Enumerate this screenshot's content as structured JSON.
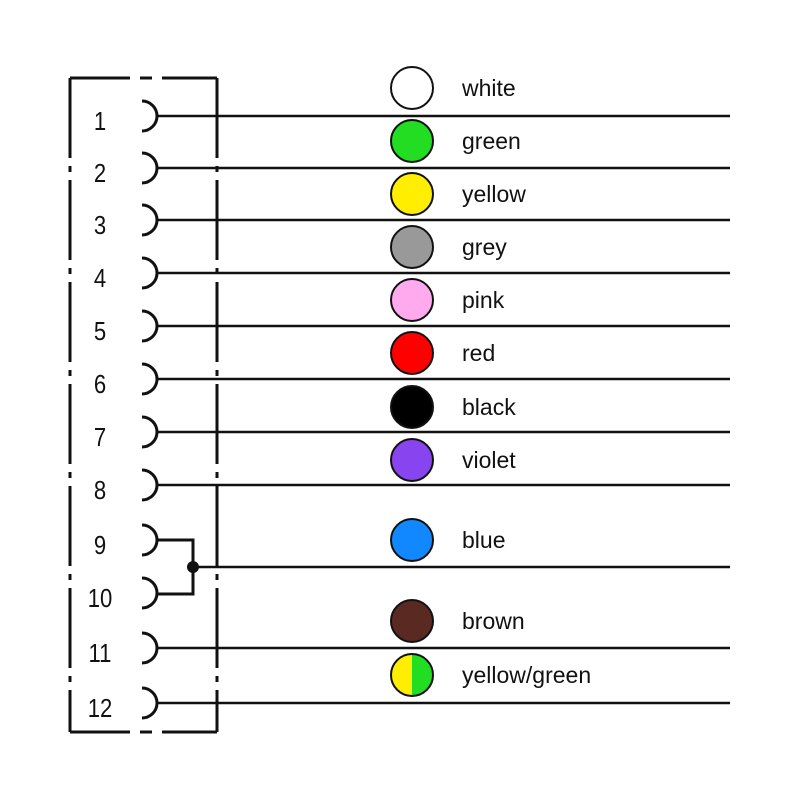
{
  "pins": [
    {
      "number": "1",
      "wire": 0
    },
    {
      "number": "2",
      "wire": 1
    },
    {
      "number": "3",
      "wire": 2
    },
    {
      "number": "4",
      "wire": 3
    },
    {
      "number": "5",
      "wire": 4
    },
    {
      "number": "6",
      "wire": 5
    },
    {
      "number": "7",
      "wire": 6
    },
    {
      "number": "8",
      "wire": 7
    },
    {
      "number": "9",
      "wire": 8
    },
    {
      "number": "10",
      "wire": 8
    },
    {
      "number": "11",
      "wire": 9
    },
    {
      "number": "12",
      "wire": 10
    }
  ],
  "wires": [
    {
      "label": "white",
      "color": "#ffffff"
    },
    {
      "label": "green",
      "color": "#22dd22"
    },
    {
      "label": "yellow",
      "color": "#ffee00"
    },
    {
      "label": "grey",
      "color": "#999999"
    },
    {
      "label": "pink",
      "color": "#ffaaee"
    },
    {
      "label": "red",
      "color": "#ff0000"
    },
    {
      "label": "black",
      "color": "#000000"
    },
    {
      "label": "violet",
      "color": "#8844ee"
    },
    {
      "label": "blue",
      "color": "#1188ff"
    },
    {
      "label": "brown",
      "color": "#5a2a22"
    },
    {
      "label": "yellow/green",
      "color": "#ffee00",
      "color2": "#22dd22"
    }
  ]
}
